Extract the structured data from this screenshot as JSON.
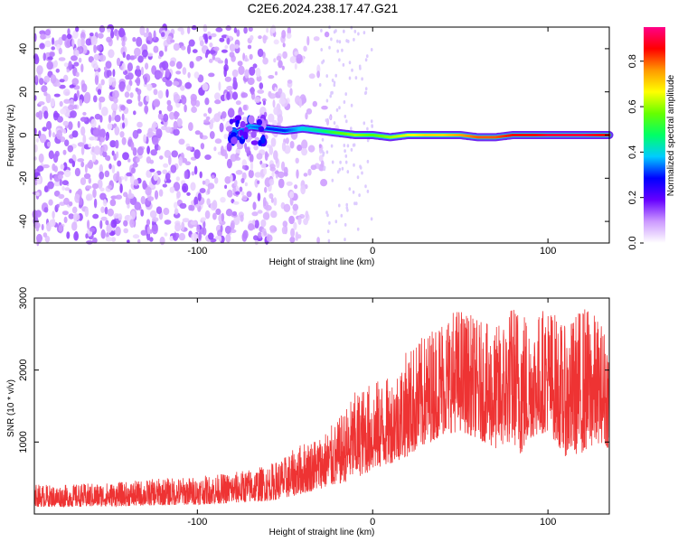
{
  "title": "C2E6.2024.238.17.47.G21",
  "chart_data": [
    {
      "type": "heatmap",
      "xlabel": "Height of straight line (km)",
      "ylabel": "Frequency (Hz)",
      "xlim": [
        -193,
        135
      ],
      "ylim": [
        -50,
        50
      ],
      "xticks": [
        -100,
        0,
        100
      ],
      "yticks": [
        -40,
        -20,
        0,
        20,
        40
      ],
      "colorbar": {
        "label": "Normalized spectral amplitude",
        "range": [
          0,
          0.95
        ],
        "ticks": [
          "0.0",
          "0.2",
          "0.4",
          "0.6",
          "0.8"
        ],
        "colors": [
          "#ffffff",
          "#cc99ff",
          "#6600ff",
          "#0000ff",
          "#00ccff",
          "#00ff66",
          "#66ff00",
          "#ffff00",
          "#ff9900",
          "#ff0000",
          "#ff0088"
        ]
      },
      "ridge": {
        "description_units": "frequency in Hz vs height in km",
        "x": [
          -80,
          -70,
          -60,
          -50,
          -40,
          -30,
          -20,
          -10,
          0,
          10,
          20,
          30,
          40,
          50,
          60,
          70,
          80,
          90,
          100,
          110,
          120,
          135
        ],
        "y": [
          0,
          4,
          3,
          2,
          3,
          2,
          1,
          0,
          0,
          -1,
          0,
          0,
          0,
          0,
          -1,
          -1,
          0,
          0,
          0,
          0,
          0,
          0
        ],
        "amplitude": [
          0.3,
          0.35,
          0.3,
          0.3,
          0.4,
          0.45,
          0.55,
          0.6,
          0.55,
          0.6,
          0.65,
          0.7,
          0.7,
          0.75,
          0.8,
          0.8,
          0.85,
          0.85,
          0.9,
          0.9,
          0.9,
          0.85
        ]
      },
      "noise_region": [
        -193,
        -30
      ]
    },
    {
      "type": "line",
      "xlabel": "Height of straight line (km)",
      "ylabel": "SNR (10 * v/v)",
      "xlim": [
        -193,
        135
      ],
      "ylim": [
        0,
        3000
      ],
      "xticks": [
        -100,
        0,
        100
      ],
      "yticks": [
        1000,
        2000,
        3000
      ],
      "color": "#ee3333",
      "envelope": {
        "x": [
          -193,
          -180,
          -160,
          -140,
          -120,
          -100,
          -80,
          -60,
          -50,
          -40,
          -30,
          -20,
          -10,
          0,
          10,
          20,
          30,
          40,
          50,
          60,
          70,
          80,
          85,
          90,
          100,
          110,
          120,
          130,
          135
        ],
        "low": [
          100,
          100,
          100,
          110,
          120,
          130,
          150,
          180,
          220,
          280,
          350,
          400,
          500,
          600,
          700,
          800,
          950,
          1100,
          1150,
          1050,
          900,
          1000,
          800,
          1050,
          1150,
          800,
          850,
          1000,
          900
        ],
        "high": [
          420,
          400,
          430,
          450,
          500,
          520,
          580,
          680,
          800,
          1000,
          1100,
          1300,
          1700,
          1850,
          1900,
          2300,
          2500,
          2800,
          2900,
          2700,
          2600,
          2950,
          3000,
          2700,
          2950,
          2600,
          2950,
          2700,
          2500
        ]
      }
    }
  ]
}
